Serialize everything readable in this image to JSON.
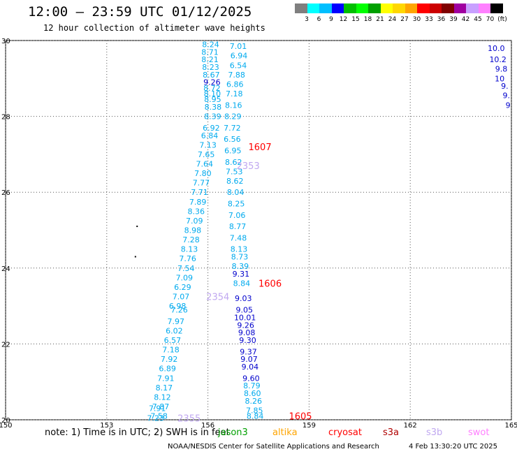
{
  "header": {
    "title": "12:00 – 23:59 UTC 01/12/2025",
    "subtitle": "12 hour collection of altimeter wave heights"
  },
  "scale": {
    "colors": [
      "#7f7f7f",
      "#00ffff",
      "#00bfff",
      "#0000ff",
      "#00bf00",
      "#00ff00",
      "#00a000",
      "#ffff00",
      "#ffd700",
      "#ffa500",
      "#ff0000",
      "#cc0000",
      "#800000",
      "#a000a0",
      "#c8a0ff",
      "#ff80ff",
      "#000000"
    ],
    "labels": [
      "3",
      "6",
      "9",
      "12",
      "15",
      "18",
      "21",
      "24",
      "27",
      "30",
      "33",
      "36",
      "39",
      "42",
      "45",
      "70",
      "(ft)"
    ]
  },
  "axes": {
    "lat_labels": [
      "30",
      "28",
      "26",
      "24",
      "22",
      "20"
    ],
    "lon_labels": [
      "150",
      "153",
      "156",
      "159",
      "162",
      "165"
    ]
  },
  "chart_data": {
    "type": "scatter",
    "title": "12:00 – 23:59 UTC 01/12/2025",
    "subtitle": "12 hour collection of altimeter wave heights",
    "xlabel": "",
    "ylabel": "",
    "xlim": [
      150,
      165
    ],
    "ylim": [
      20,
      30
    ],
    "grid": true,
    "tracks": [
      {
        "name": "1607",
        "label_pos": {
          "lon": 157.2,
          "lat": 27.2
        },
        "label_color": "#ff0000",
        "values": [
          {
            "lon": 156.08,
            "lat": 29.9,
            "v": "8.24",
            "c": "#00aaee"
          },
          {
            "lon": 156.06,
            "lat": 29.7,
            "v": "8.71",
            "c": "#00aaee"
          },
          {
            "lon": 156.06,
            "lat": 29.5,
            "v": "8.21",
            "c": "#00aaee"
          },
          {
            "lon": 156.08,
            "lat": 29.3,
            "v": "8.23",
            "c": "#00aaee"
          },
          {
            "lon": 156.1,
            "lat": 29.1,
            "v": "8.67",
            "c": "#00aaee"
          },
          {
            "lon": 156.12,
            "lat": 28.9,
            "v": "9.26",
            "c": "#0000cc"
          },
          {
            "lon": 156.12,
            "lat": 28.75,
            "v": "8.72",
            "c": "#00aaee"
          },
          {
            "lon": 156.13,
            "lat": 28.6,
            "v": "8.10",
            "c": "#00aaee"
          },
          {
            "lon": 156.14,
            "lat": 28.45,
            "v": "8.95",
            "c": "#00aaee"
          },
          {
            "lon": 156.15,
            "lat": 28.25,
            "v": "8.38",
            "c": "#00aaee"
          },
          {
            "lon": 156.14,
            "lat": 28.0,
            "v": "8.39",
            "c": "#00aaee"
          },
          {
            "lon": 156.1,
            "lat": 27.7,
            "v": "6.92",
            "c": "#00aaee"
          },
          {
            "lon": 156.05,
            "lat": 27.5,
            "v": "6.84",
            "c": "#00aaee"
          },
          {
            "lon": 156.0,
            "lat": 27.25,
            "v": "7.13",
            "c": "#00aaee"
          },
          {
            "lon": 155.95,
            "lat": 27.0,
            "v": "7.65",
            "c": "#00aaee"
          },
          {
            "lon": 155.9,
            "lat": 26.75,
            "v": "7.64",
            "c": "#00aaee"
          },
          {
            "lon": 155.85,
            "lat": 26.5,
            "v": "7.80",
            "c": "#00aaee"
          },
          {
            "lon": 155.8,
            "lat": 26.25,
            "v": "7.77",
            "c": "#00aaee"
          },
          {
            "lon": 155.75,
            "lat": 26.0,
            "v": "7.71",
            "c": "#00aaee"
          },
          {
            "lon": 155.7,
            "lat": 25.75,
            "v": "7.89",
            "c": "#00aaee"
          },
          {
            "lon": 155.65,
            "lat": 25.5,
            "v": "8.36",
            "c": "#00aaee"
          },
          {
            "lon": 155.6,
            "lat": 25.25,
            "v": "7.09",
            "c": "#00aaee"
          },
          {
            "lon": 155.55,
            "lat": 25.0,
            "v": "8.98",
            "c": "#00aaee"
          },
          {
            "lon": 155.5,
            "lat": 24.75,
            "v": "7.28",
            "c": "#00aaee"
          },
          {
            "lon": 155.45,
            "lat": 24.5,
            "v": "8.13",
            "c": "#00aaee"
          },
          {
            "lon": 155.4,
            "lat": 24.25,
            "v": "7.76",
            "c": "#00aaee"
          },
          {
            "lon": 155.35,
            "lat": 24.0,
            "v": "7.54",
            "c": "#00aaee"
          }
        ]
      },
      {
        "name": "1606",
        "label_pos": {
          "lon": 157.5,
          "lat": 23.6
        },
        "label_color": "#ff0000",
        "values": [
          {
            "lon": 156.9,
            "lat": 29.85,
            "v": "7.01",
            "c": "#00aaee"
          },
          {
            "lon": 156.92,
            "lat": 29.6,
            "v": "6.94",
            "c": "#00aaee"
          },
          {
            "lon": 156.9,
            "lat": 29.35,
            "v": "6.54",
            "c": "#00aaee"
          },
          {
            "lon": 156.85,
            "lat": 29.1,
            "v": "7.88",
            "c": "#00aaee"
          },
          {
            "lon": 156.8,
            "lat": 28.85,
            "v": "6.86",
            "c": "#00aaee"
          },
          {
            "lon": 156.78,
            "lat": 28.6,
            "v": "7.18",
            "c": "#00aaee"
          },
          {
            "lon": 156.76,
            "lat": 28.3,
            "v": "8.16",
            "c": "#00aaee"
          },
          {
            "lon": 156.74,
            "lat": 28.0,
            "v": "8.29",
            "c": "#00aaee"
          },
          {
            "lon": 156.72,
            "lat": 27.7,
            "v": "7.72",
            "c": "#00aaee"
          },
          {
            "lon": 156.72,
            "lat": 27.4,
            "v": "6.56",
            "c": "#00aaee"
          },
          {
            "lon": 156.74,
            "lat": 27.1,
            "v": "6.95",
            "c": "#00aaee"
          },
          {
            "lon": 156.76,
            "lat": 26.8,
            "v": "8.62",
            "c": "#00aaee"
          },
          {
            "lon": 156.78,
            "lat": 26.55,
            "v": "7.53",
            "c": "#00aaee"
          },
          {
            "lon": 156.8,
            "lat": 26.3,
            "v": "8.62",
            "c": "#00aaee"
          },
          {
            "lon": 156.82,
            "lat": 26.0,
            "v": "8.04",
            "c": "#00aaee"
          },
          {
            "lon": 156.84,
            "lat": 25.7,
            "v": "8.25",
            "c": "#00aaee"
          },
          {
            "lon": 156.86,
            "lat": 25.4,
            "v": "7.06",
            "c": "#00aaee"
          },
          {
            "lon": 156.88,
            "lat": 25.1,
            "v": "8.77",
            "c": "#00aaee"
          },
          {
            "lon": 156.9,
            "lat": 24.8,
            "v": "7.48",
            "c": "#00aaee"
          },
          {
            "lon": 156.92,
            "lat": 24.5,
            "v": "8.13",
            "c": "#00aaee"
          },
          {
            "lon": 156.94,
            "lat": 24.3,
            "v": "8.73",
            "c": "#00aaee"
          },
          {
            "lon": 156.96,
            "lat": 24.05,
            "v": "8.39",
            "c": "#00aaee"
          },
          {
            "lon": 156.98,
            "lat": 23.85,
            "v": "9.31",
            "c": "#0000cc"
          },
          {
            "lon": 157.0,
            "lat": 23.6,
            "v": "8.84",
            "c": "#00aaee"
          }
        ]
      },
      {
        "name": "1605",
        "label_pos": {
          "lon": 158.4,
          "lat": 20.1
        },
        "label_color": "#ff0000",
        "values": [
          {
            "lon": 157.05,
            "lat": 23.2,
            "v": "9.03",
            "c": "#0000cc"
          },
          {
            "lon": 157.08,
            "lat": 22.9,
            "v": "9.05",
            "c": "#0000cc"
          },
          {
            "lon": 157.1,
            "lat": 22.7,
            "v": "10.01",
            "c": "#0000cc"
          },
          {
            "lon": 157.12,
            "lat": 22.5,
            "v": "9.26",
            "c": "#0000cc"
          },
          {
            "lon": 157.15,
            "lat": 22.3,
            "v": "9.08",
            "c": "#0000cc"
          },
          {
            "lon": 157.18,
            "lat": 22.1,
            "v": "9.30",
            "c": "#0000cc"
          },
          {
            "lon": 157.2,
            "lat": 21.8,
            "v": "9.37",
            "c": "#0000cc"
          },
          {
            "lon": 157.22,
            "lat": 21.6,
            "v": "9.07",
            "c": "#0000cc"
          },
          {
            "lon": 157.25,
            "lat": 21.4,
            "v": "9.04",
            "c": "#0000cc"
          },
          {
            "lon": 157.28,
            "lat": 21.1,
            "v": "9.60",
            "c": "#0000cc"
          },
          {
            "lon": 157.3,
            "lat": 20.9,
            "v": "8.79",
            "c": "#00aaee"
          },
          {
            "lon": 157.32,
            "lat": 20.7,
            "v": "8.60",
            "c": "#00aaee"
          },
          {
            "lon": 157.35,
            "lat": 20.5,
            "v": "8.26",
            "c": "#00aaee"
          },
          {
            "lon": 157.38,
            "lat": 20.25,
            "v": "7.85",
            "c": "#00aaee"
          },
          {
            "lon": 157.4,
            "lat": 20.1,
            "v": "8.84",
            "c": "#00aaee"
          }
        ]
      },
      {
        "name": "2354",
        "label_pos": {
          "lon": 155.95,
          "lat": 23.25
        },
        "label_color": "#c0a8f0",
        "values": [
          {
            "lon": 155.3,
            "lat": 23.75,
            "v": "7.09",
            "c": "#00aaee"
          },
          {
            "lon": 155.25,
            "lat": 23.5,
            "v": "6.29",
            "c": "#00aaee"
          },
          {
            "lon": 155.2,
            "lat": 23.25,
            "v": "7.07",
            "c": "#00aaee"
          },
          {
            "lon": 155.1,
            "lat": 23.0,
            "v": "6.98",
            "c": "#00aaee"
          },
          {
            "lon": 155.15,
            "lat": 22.9,
            "v": "7.26",
            "c": "#00aaee"
          },
          {
            "lon": 155.05,
            "lat": 22.6,
            "v": "7.97",
            "c": "#00aaee"
          },
          {
            "lon": 155.0,
            "lat": 22.35,
            "v": "6.02",
            "c": "#00aaee"
          },
          {
            "lon": 154.95,
            "lat": 22.1,
            "v": "6.57",
            "c": "#00aaee"
          },
          {
            "lon": 154.9,
            "lat": 21.85,
            "v": "7.18",
            "c": "#00aaee"
          },
          {
            "lon": 154.85,
            "lat": 21.6,
            "v": "7.92",
            "c": "#00aaee"
          },
          {
            "lon": 154.8,
            "lat": 21.35,
            "v": "6.89",
            "c": "#00aaee"
          },
          {
            "lon": 154.75,
            "lat": 21.1,
            "v": "7.91",
            "c": "#00aaee"
          },
          {
            "lon": 154.7,
            "lat": 20.85,
            "v": "8.17",
            "c": "#00aaee"
          },
          {
            "lon": 154.65,
            "lat": 20.6,
            "v": "8.12",
            "c": "#00aaee"
          },
          {
            "lon": 154.6,
            "lat": 20.35,
            "v": "7.87",
            "c": "#00aaee"
          },
          {
            "lon": 154.55,
            "lat": 20.1,
            "v": "7.58",
            "c": "#00aaee"
          }
        ]
      },
      {
        "name": "2353",
        "label_pos": {
          "lon": 156.85,
          "lat": 26.7
        },
        "label_color": "#c0a8f0",
        "values": []
      },
      {
        "name": "2355",
        "label_pos": {
          "lon": 155.1,
          "lat": 20.05
        },
        "label_color": "#c0a8f0",
        "values": [
          {
            "lon": 154.5,
            "lat": 20.3,
            "v": "7.91",
            "c": "#00aaee"
          },
          {
            "lon": 154.45,
            "lat": 20.05,
            "v": "7.23",
            "c": "#00aaee"
          }
        ]
      },
      {
        "name": "east-edge",
        "values": [
          {
            "lon": 164.55,
            "lat": 29.8,
            "v": "10.0",
            "c": "#0000cc"
          },
          {
            "lon": 164.6,
            "lat": 29.5,
            "v": "10.2",
            "c": "#0000cc"
          },
          {
            "lon": 164.7,
            "lat": 29.25,
            "v": "9.8",
            "c": "#0000cc"
          },
          {
            "lon": 164.65,
            "lat": 29.0,
            "v": "10",
            "c": "#0000cc"
          },
          {
            "lon": 164.8,
            "lat": 28.8,
            "v": "9.",
            "c": "#0000cc"
          },
          {
            "lon": 164.85,
            "lat": 28.55,
            "v": "9.",
            "c": "#0000cc"
          },
          {
            "lon": 164.9,
            "lat": 28.3,
            "v": "9",
            "c": "#0000cc"
          }
        ]
      }
    ],
    "land_points": [
      {
        "lon": 153.9,
        "lat": 25.1
      },
      {
        "lon": 153.85,
        "lat": 24.3
      }
    ]
  },
  "footer": {
    "note": "note:  1) Time is in UTC;  2) SWH is in feet",
    "satellites": [
      {
        "name": "jason3",
        "color": "#00a000"
      },
      {
        "name": "altika",
        "color": "#ffa500"
      },
      {
        "name": "cryosat",
        "color": "#ff0000"
      },
      {
        "name": "s3a",
        "color": "#b00000"
      },
      {
        "name": "s3b",
        "color": "#c0a8f0"
      },
      {
        "name": "swot",
        "color": "#ff80ff"
      }
    ],
    "credit": "NOAA/NESDIS Center for Satellite Applications and Research",
    "timestamp": "4 Feb 13:30:20 UTC 2025"
  }
}
